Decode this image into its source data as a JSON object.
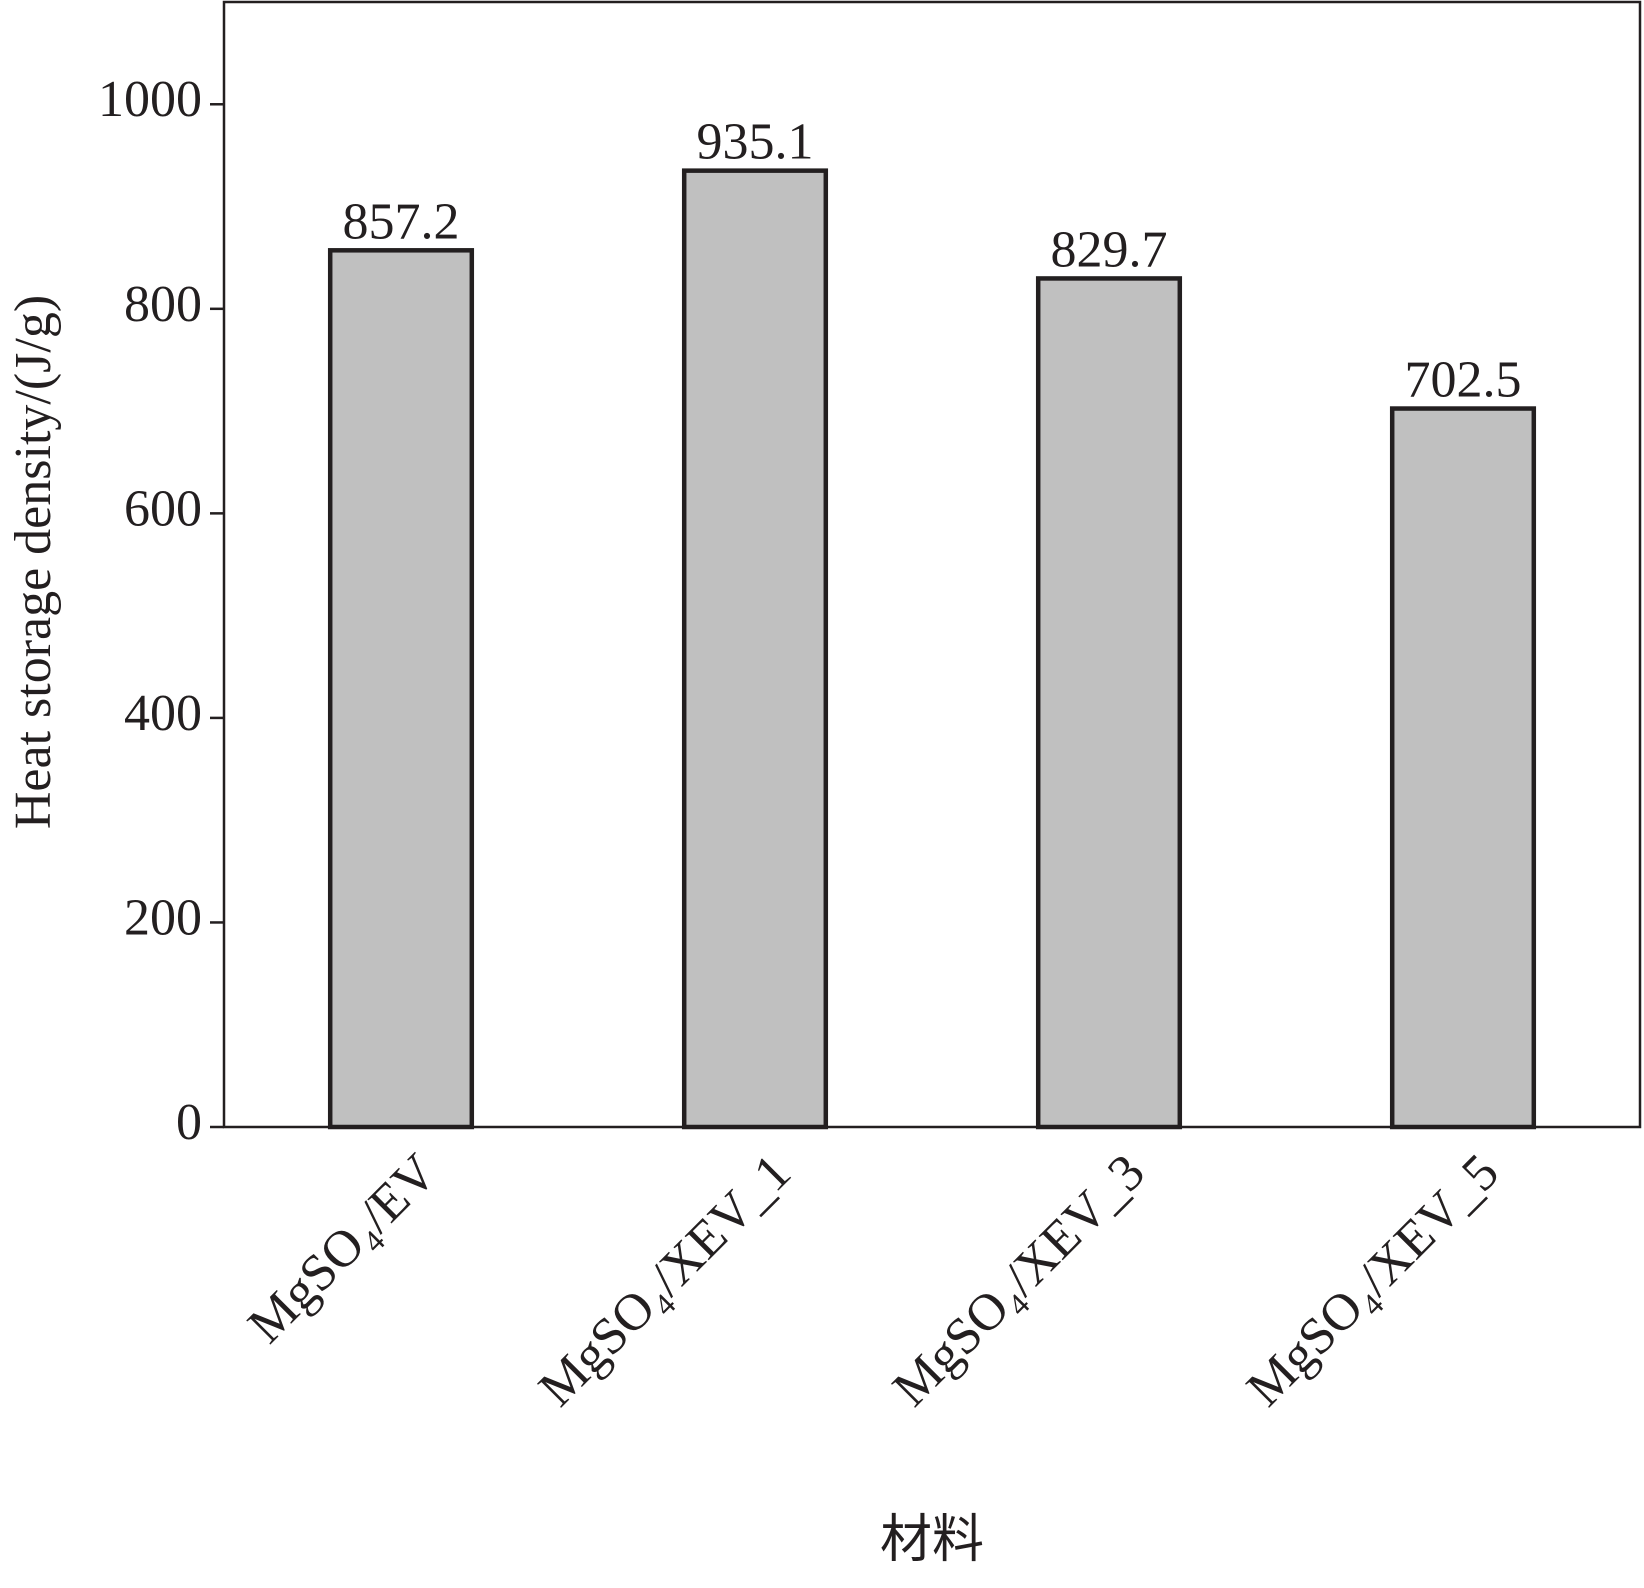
{
  "chart_data": {
    "type": "bar",
    "x_label": "材料",
    "y_label": "Heat storage density/(J/g)",
    "categories": [
      "MgSO₄/EV",
      "MgSO₄/XEV_1",
      "MgSO₄/XEV_3",
      "MgSO₄/XEV_5"
    ],
    "values": [
      857.2,
      935.1,
      829.7,
      702.5
    ],
    "color": "#c0c0c0",
    "ylim": [
      0,
      1100
    ],
    "yticks": [
      0,
      200,
      400,
      600,
      800,
      1000
    ]
  }
}
